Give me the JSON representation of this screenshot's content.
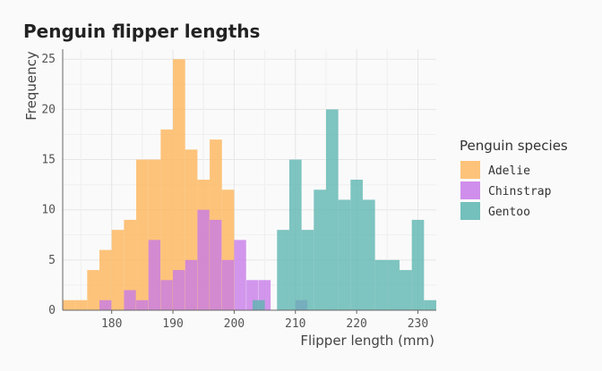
{
  "chart_data": {
    "type": "bar",
    "title": "Penguin flipper lengths",
    "xlabel": "Flipper length (mm)",
    "ylabel": "Frequency",
    "xlim": [
      172,
      233
    ],
    "ylim": [
      0,
      26
    ],
    "xticks": [
      180,
      190,
      200,
      210,
      220,
      230
    ],
    "yticks": [
      0,
      5,
      10,
      15,
      20,
      25
    ],
    "grid": true,
    "legend_title": "Penguin species",
    "legend_position": "right",
    "series": [
      {
        "name": "Adelie",
        "color": "#fdb863",
        "x": [
          172,
          174,
          176,
          178,
          180,
          182,
          184,
          186,
          188,
          190,
          192,
          194,
          196,
          198,
          200,
          202,
          204,
          206,
          208,
          210
        ],
        "width": 2,
        "values": [
          1,
          1,
          4,
          6,
          8,
          9,
          15,
          15,
          18,
          25,
          16,
          13,
          17,
          12,
          0,
          0,
          0,
          0,
          0,
          0
        ]
      },
      {
        "name": "Chinstrap",
        "color": "#c77ae8",
        "x": [
          178,
          180,
          182,
          184,
          186,
          188,
          190,
          192,
          194,
          196,
          198,
          200,
          202,
          204,
          206,
          208,
          210
        ],
        "width": 1.95,
        "values": [
          1,
          0,
          2,
          1,
          7,
          3,
          4,
          5,
          10,
          9,
          5,
          7,
          3,
          3,
          0,
          0,
          1
        ]
      },
      {
        "name": "Gentoo",
        "color": "#5bb5b0",
        "x": [
          203,
          205,
          207,
          209,
          211,
          213,
          215,
          217,
          219,
          221,
          223,
          225,
          227,
          229,
          231
        ],
        "width": 2,
        "values": [
          1,
          0,
          8,
          15,
          8,
          12,
          20,
          11,
          13,
          11,
          5,
          5,
          4,
          9,
          1
        ]
      }
    ],
    "overlap_colors": {
      "adelie_chinstrap": "#c967b0",
      "chinstrap_gentoo": "#5f83c6"
    }
  }
}
